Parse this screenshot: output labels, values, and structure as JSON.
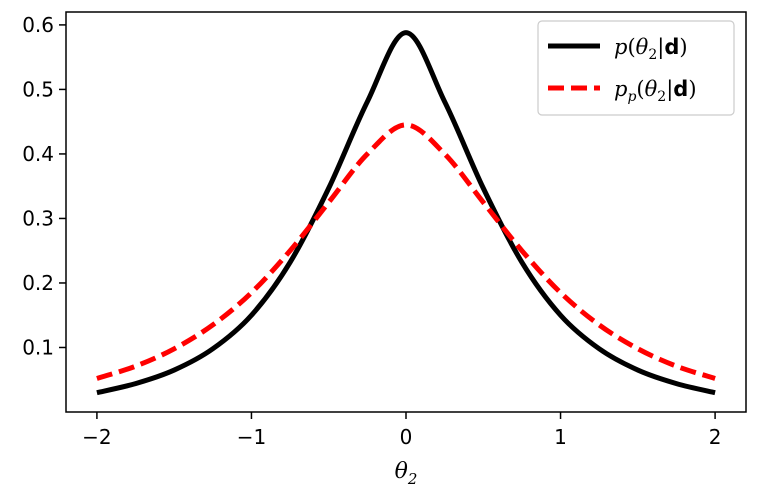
{
  "chart_data": {
    "type": "line",
    "title": "",
    "xlabel": "θ₂",
    "ylabel": "",
    "xlim": [
      -2.2,
      2.2
    ],
    "ylim": [
      0.0,
      0.62
    ],
    "xticks": [
      -2,
      -1,
      0,
      1,
      2
    ],
    "xtick_labels": [
      "−2",
      "−1",
      "0",
      "1",
      "2"
    ],
    "yticks": [
      0.1,
      0.2,
      0.3,
      0.4,
      0.5,
      0.6
    ],
    "ytick_labels": [
      "0.1",
      "0.2",
      "0.3",
      "0.4",
      "0.5",
      "0.6"
    ],
    "grid": false,
    "legend_position": "top-right",
    "series": [
      {
        "name": "p(θ₂|d)",
        "color": "#000000",
        "dash": "solid",
        "x": [
          -2.0,
          -1.75,
          -1.5,
          -1.25,
          -1.0,
          -0.75,
          -0.5,
          -0.25,
          0.0,
          0.25,
          0.5,
          0.75,
          1.0,
          1.25,
          1.5,
          1.75,
          2.0
        ],
        "y": [
          0.03,
          0.044,
          0.065,
          0.098,
          0.15,
          0.232,
          0.347,
          0.481,
          0.588,
          0.481,
          0.347,
          0.232,
          0.15,
          0.098,
          0.065,
          0.044,
          0.03
        ]
      },
      {
        "name": "pₚ(θ₂|d)",
        "color": "#ff0000",
        "dash": "dashed",
        "x": [
          -2.0,
          -1.75,
          -1.5,
          -1.25,
          -1.0,
          -0.75,
          -0.5,
          -0.25,
          0.0,
          0.25,
          0.5,
          0.75,
          1.0,
          1.25,
          1.5,
          1.75,
          2.0
        ],
        "y": [
          0.052,
          0.071,
          0.098,
          0.135,
          0.185,
          0.25,
          0.325,
          0.4,
          0.445,
          0.4,
          0.325,
          0.25,
          0.185,
          0.135,
          0.098,
          0.071,
          0.052
        ]
      }
    ]
  }
}
